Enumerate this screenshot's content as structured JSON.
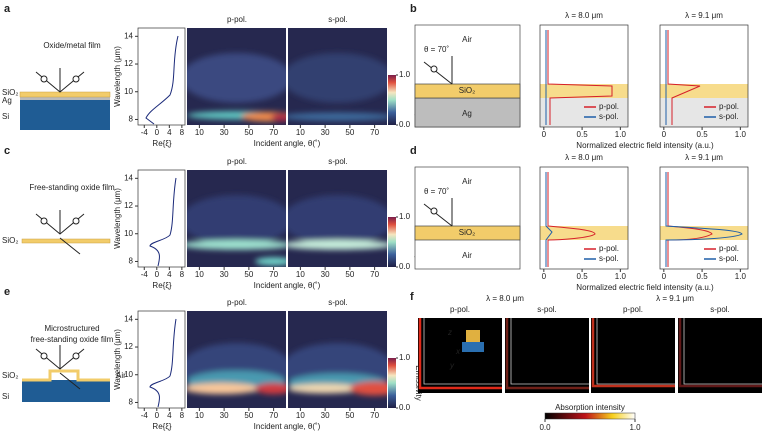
{
  "panels_left": [
    {
      "label": "a",
      "title": [
        "Oxide/metal film"
      ],
      "layers": [
        "SiO₂",
        "Ag",
        "Si"
      ]
    },
    {
      "label": "c",
      "title": [
        "Free-standing oxide film"
      ],
      "layers": [
        "SiO₂"
      ]
    },
    {
      "label": "e",
      "title": [
        "Microstructured",
        "free-standing oxide film"
      ],
      "layers": [
        "SiO₂",
        "Air",
        "Si"
      ]
    }
  ],
  "spectrum": {
    "ylabel": "Wavelength (μm)",
    "yticks": [
      8,
      10,
      12,
      14
    ],
    "ylim": [
      7.6,
      14.6
    ],
    "xlabel": "Re{ξ}",
    "xticks": [
      -4,
      0,
      4,
      8
    ],
    "xlim": [
      -6,
      9
    ]
  },
  "map": {
    "titles": [
      "p-pol.",
      "s-pol."
    ],
    "xlabel": "Incident angle, θ(˚)",
    "xticks": [
      10,
      30,
      50,
      70
    ],
    "xlim": [
      0,
      80
    ],
    "colorbar_label": "Emissivity",
    "colorbar_ticks": [
      {
        "value": 0,
        "label": "0.0"
      },
      {
        "value": 1,
        "label": "1.0"
      }
    ]
  },
  "panels_right": [
    {
      "label": "b",
      "top": "Air",
      "angle": "θ = 70˚",
      "film": "SiO₂",
      "bottom": "Ag"
    },
    {
      "label": "d",
      "top": "Air",
      "angle": "θ = 70˚",
      "film": "SiO₂",
      "bottom": "Air"
    }
  ],
  "field": {
    "titles": [
      "λ = 8.0 μm",
      "λ = 9.1 μm"
    ],
    "xticks": [
      0,
      0.5,
      {
        "value": 1,
        "label": "1.0"
      }
    ],
    "xlim": [
      -0.05,
      1.1
    ],
    "xlabel": "Normalized electric field intensity (a.u.)",
    "legend": [
      "p-pol.",
      "s-pol."
    ]
  },
  "panel_f": {
    "label": "f",
    "titles": [
      "λ = 8.0 μm",
      "λ = 9.1 μm"
    ],
    "subtitles": [
      "p-pol.",
      "s-pol.",
      "p-pol.",
      "s-pol."
    ],
    "axes": [
      "z",
      "x",
      "y"
    ],
    "colorbar_label": "Absorption intensity",
    "colorbar_ticks": [
      {
        "value": 0,
        "label": "0.0"
      },
      {
        "value": 1,
        "label": "1.0"
      }
    ]
  }
}
